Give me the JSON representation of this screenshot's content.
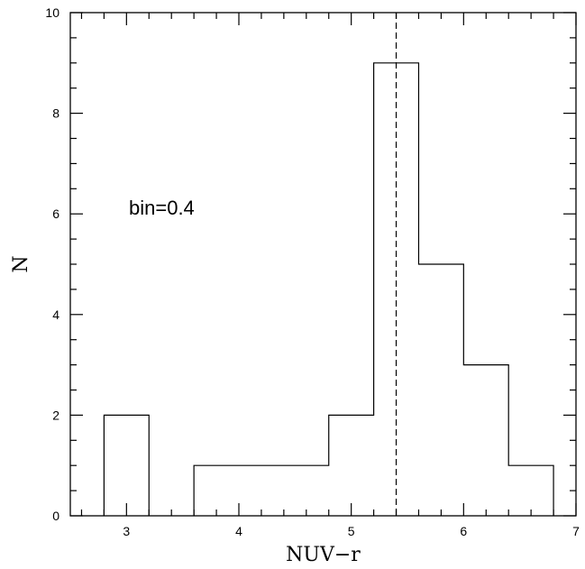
{
  "chart_data": {
    "type": "bar",
    "subtype": "histogram",
    "bin_width": 0.4,
    "bins": [
      {
        "x0": 2.8,
        "x1": 3.2,
        "count": 2
      },
      {
        "x0": 3.6,
        "x1": 4.0,
        "count": 1
      },
      {
        "x0": 4.0,
        "x1": 4.4,
        "count": 1
      },
      {
        "x0": 4.4,
        "x1": 4.8,
        "count": 1
      },
      {
        "x0": 4.8,
        "x1": 5.2,
        "count": 2
      },
      {
        "x0": 5.2,
        "x1": 5.6,
        "count": 9
      },
      {
        "x0": 5.6,
        "x1": 6.0,
        "count": 5
      },
      {
        "x0": 6.0,
        "x1": 6.4,
        "count": 3
      },
      {
        "x0": 6.4,
        "x1": 6.8,
        "count": 1
      }
    ],
    "vline": 5.4,
    "annotation": "bin=0.4",
    "xlabel": "NUV−r",
    "ylabel": "N",
    "xlim": [
      2.5,
      7
    ],
    "ylim": [
      0,
      10
    ],
    "xticks": [
      3,
      4,
      5,
      6,
      7
    ],
    "yticks": [
      0,
      2,
      4,
      6,
      8,
      10
    ],
    "grid": false
  }
}
